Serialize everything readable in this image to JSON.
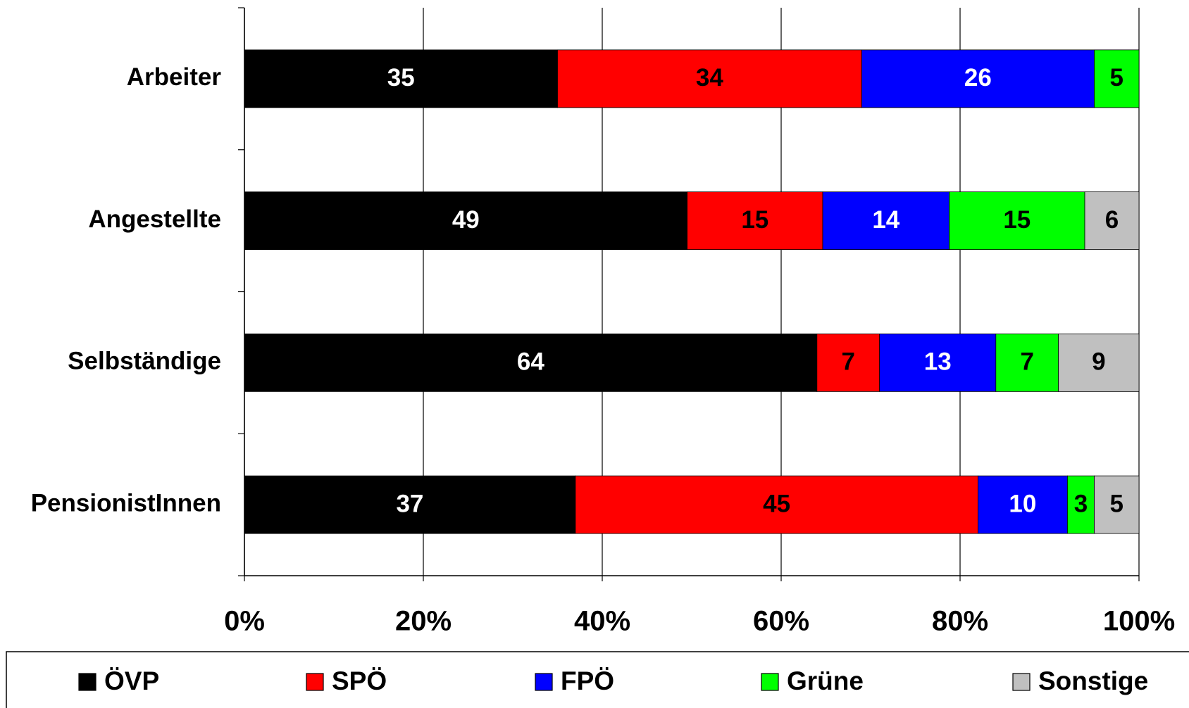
{
  "chart_data": {
    "type": "stacked_bar_horizontal",
    "stacking": "percent",
    "categories": [
      "Arbeiter",
      "Angestellte",
      "Selbständige",
      "PensionistInnen"
    ],
    "series": [
      {
        "name": "ÖVP",
        "color": "#000000",
        "label_color": "#ffffff",
        "values": [
          35,
          49,
          64,
          37
        ]
      },
      {
        "name": "SPÖ",
        "color": "#ff0000",
        "label_color": "#000000",
        "values": [
          34,
          15,
          7,
          45
        ]
      },
      {
        "name": "FPÖ",
        "color": "#0000ff",
        "label_color": "#ffffff",
        "values": [
          26,
          14,
          13,
          10
        ]
      },
      {
        "name": "Grüne",
        "color": "#00ff00",
        "label_color": "#000000",
        "values": [
          5,
          15,
          7,
          3
        ]
      },
      {
        "name": "Sonstige",
        "color": "#c0c0c0",
        "label_color": "#000000",
        "values": [
          null,
          6,
          9,
          5
        ]
      }
    ],
    "xlim": [
      0,
      100
    ],
    "xticks": [
      {
        "value": 0,
        "label": "0%"
      },
      {
        "value": 20,
        "label": "20%"
      },
      {
        "value": 40,
        "label": "40%"
      },
      {
        "value": 60,
        "label": "60%"
      },
      {
        "value": 80,
        "label": "80%"
      },
      {
        "value": 100,
        "label": "100%"
      }
    ],
    "grid": true,
    "legend": "bottom"
  }
}
